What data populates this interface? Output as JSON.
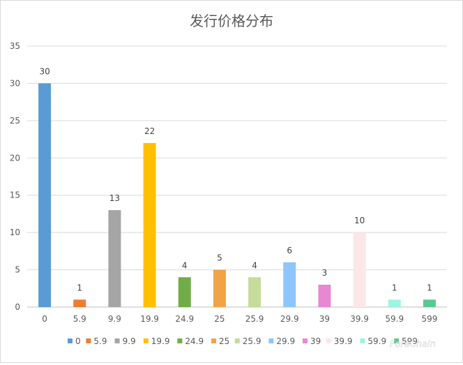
{
  "chart_data": {
    "type": "bar",
    "title": "发行价格分布",
    "categories": [
      "0",
      "5.9",
      "9.9",
      "19.9",
      "24.9",
      "25",
      "25.9",
      "29.9",
      "39",
      "39.9",
      "59.9",
      "599"
    ],
    "values": [
      30,
      1,
      13,
      22,
      4,
      5,
      4,
      6,
      3,
      10,
      1,
      1
    ],
    "colors": [
      "#5b9bd5",
      "#ed7d31",
      "#a5a5a5",
      "#ffc000",
      "#70ad47",
      "#f0a446",
      "#c5dc9b",
      "#8ec5fc",
      "#e788d2",
      "#fbe7e7",
      "#9cf5e0",
      "#59c98f"
    ],
    "xlabel": "",
    "ylabel": "",
    "ylim": [
      0,
      35
    ],
    "yticks": [
      0,
      5,
      10,
      15,
      20,
      25,
      30,
      35
    ],
    "grid": true,
    "legend": "bottom"
  },
  "watermark": "ForeChain"
}
